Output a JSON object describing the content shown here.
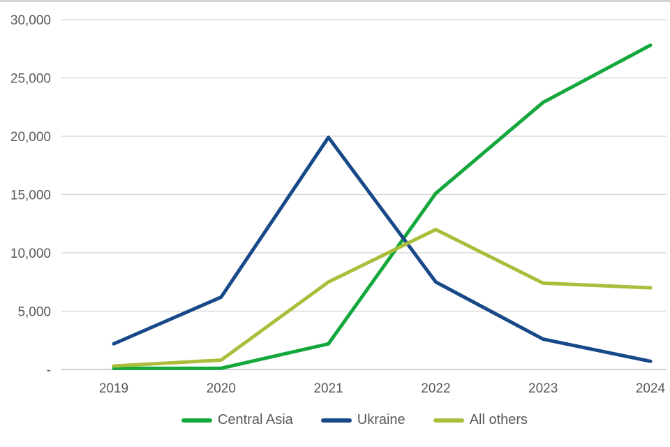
{
  "chart_data": {
    "type": "line",
    "title": "",
    "xlabel": "",
    "ylabel": "",
    "categories": [
      "2019",
      "2020",
      "2021",
      "2022",
      "2023",
      "2024"
    ],
    "series": [
      {
        "name": "Central Asia",
        "color": "#14a83c",
        "values": [
          100,
          100,
          2200,
          15100,
          22900,
          27800
        ]
      },
      {
        "name": "Ukraine",
        "color": "#174989",
        "values": [
          2200,
          6200,
          19900,
          7500,
          2600,
          700
        ]
      },
      {
        "name": "All others",
        "color": "#aabe3c",
        "values": [
          300,
          800,
          7500,
          12000,
          7400,
          7000
        ]
      }
    ],
    "ylim": [
      0,
      30000
    ],
    "y_ticks": [
      0,
      5000,
      10000,
      15000,
      20000,
      25000,
      30000
    ],
    "y_tick_labels": [
      "-",
      "5,000",
      "10,000",
      "15,000",
      "20,000",
      "25,000",
      "30,000"
    ],
    "grid": "horizontal-only",
    "legend_position": "bottom-center"
  },
  "style": {
    "grid_color": "#d9d9d9",
    "zero_line_color": "#cfcfcf",
    "axis_text_color": "#595959",
    "background": "#ffffff",
    "top_border_color": "#d6d6d6"
  }
}
